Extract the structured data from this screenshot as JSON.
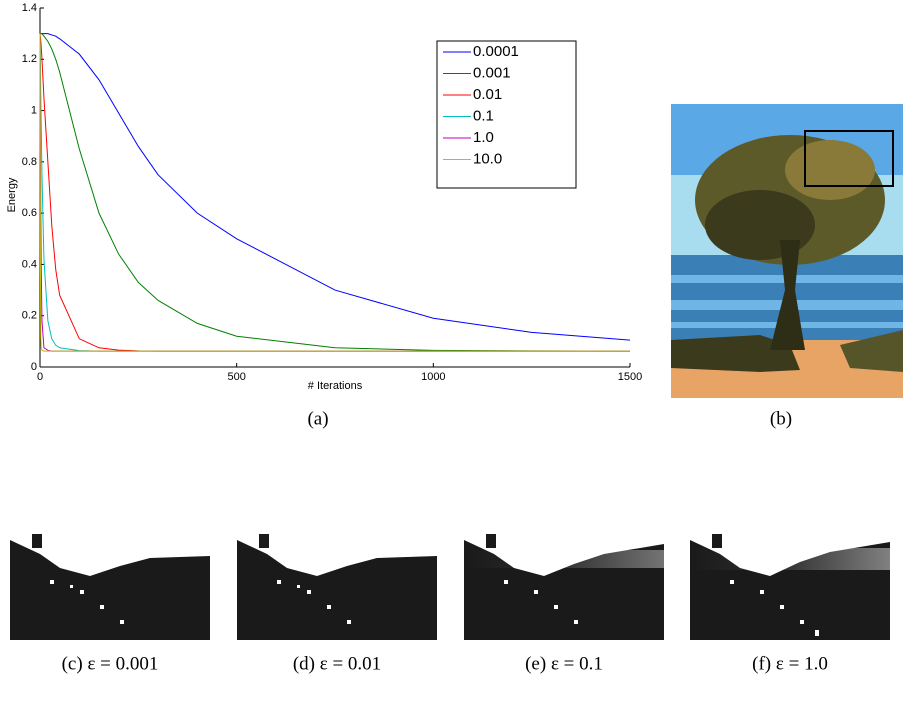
{
  "chart_data": {
    "type": "line",
    "xlabel": "# Iterations",
    "ylabel": "Energy",
    "x": [
      0,
      1,
      2,
      3,
      5,
      10,
      20,
      30,
      40,
      50,
      100,
      150,
      200,
      250,
      300,
      400,
      500,
      750,
      1000,
      1250,
      1500
    ],
    "series": [
      {
        "name": "0.0001",
        "color": "#0000ff",
        "values": [
          1.3,
          1.3,
          1.3,
          1.3,
          1.3,
          1.3,
          1.3,
          1.295,
          1.29,
          1.28,
          1.22,
          1.12,
          0.99,
          0.86,
          0.75,
          0.6,
          0.5,
          0.3,
          0.19,
          0.135,
          0.105
        ]
      },
      {
        "name": "0.001",
        "color": "#008000",
        "values": [
          1.3,
          1.3,
          1.3,
          1.3,
          1.3,
          1.29,
          1.27,
          1.24,
          1.2,
          1.15,
          0.85,
          0.6,
          0.44,
          0.33,
          0.26,
          0.17,
          0.12,
          0.075,
          0.065,
          0.063,
          0.062
        ]
      },
      {
        "name": "0.01",
        "color": "#ff0000",
        "values": [
          1.3,
          1.29,
          1.27,
          1.25,
          1.2,
          1.05,
          0.8,
          0.55,
          0.38,
          0.28,
          0.11,
          0.075,
          0.066,
          0.063,
          0.062,
          0.062,
          0.062,
          0.062,
          0.062,
          0.062,
          0.062
        ]
      },
      {
        "name": "0.1",
        "color": "#00bfbf",
        "values": [
          1.3,
          1.2,
          1.05,
          0.95,
          0.75,
          0.42,
          0.18,
          0.11,
          0.085,
          0.075,
          0.064,
          0.062,
          0.062,
          0.062,
          0.062,
          0.062,
          0.062,
          0.062,
          0.062,
          0.062,
          0.062
        ]
      },
      {
        "name": "1.0",
        "color": "#bf00bf",
        "values": [
          1.3,
          0.9,
          0.6,
          0.4,
          0.18,
          0.075,
          0.065,
          0.062,
          0.062,
          0.062,
          0.062,
          0.062,
          0.062,
          0.062,
          0.062,
          0.062,
          0.062,
          0.062,
          0.062,
          0.062,
          0.062
        ]
      },
      {
        "name": "10.0",
        "color": "#bfbf00",
        "values": [
          1.3,
          0.4,
          0.12,
          0.075,
          0.065,
          0.062,
          0.062,
          0.062,
          0.062,
          0.062,
          0.062,
          0.062,
          0.062,
          0.062,
          0.062,
          0.062,
          0.062,
          0.062,
          0.062,
          0.062,
          0.062
        ]
      }
    ],
    "xlim": [
      0,
      1500
    ],
    "xticks": [
      0,
      500,
      1000,
      1500
    ],
    "ylim": [
      0,
      1.4
    ],
    "yticks": [
      0,
      0.2,
      0.4,
      0.6,
      0.8,
      1,
      1.2,
      1.4
    ],
    "grid": false,
    "legend": "upper right"
  },
  "captions": [
    "(a)",
    "(b)",
    "(c) ε = 0.001",
    "(d) ε = 0.01",
    "(e) ε = 0.1",
    "(f) ε = 1.0"
  ]
}
